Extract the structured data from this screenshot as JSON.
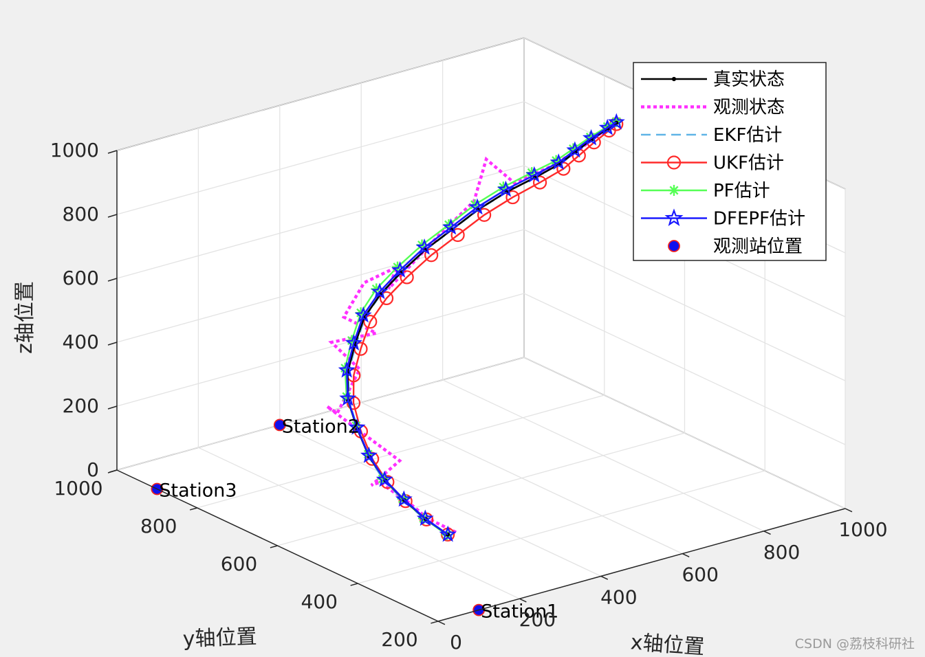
{
  "watermark": "CSDN @荔枝科研社",
  "chart_data": {
    "type": "line3d",
    "xlabel": "x轴位置",
    "ylabel": "y轴位置",
    "zlabel": "z轴位置",
    "xlim": [
      0,
      1000
    ],
    "ylim": [
      200,
      1000
    ],
    "zlim": [
      0,
      1000
    ],
    "x_ticks": [
      0,
      200,
      400,
      600,
      800,
      1000
    ],
    "y_ticks": [
      200,
      400,
      600,
      800,
      1000
    ],
    "z_ticks": [
      0,
      200,
      400,
      600,
      800,
      1000
    ],
    "x_tick_labels": [
      "0",
      "200",
      "400",
      "600",
      "800",
      "1000"
    ],
    "y_tick_labels": [
      "200",
      "400",
      "600",
      "800",
      "1000"
    ],
    "z_tick_labels": [
      "0",
      "200",
      "400",
      "600",
      "800",
      "1000"
    ],
    "grid": true,
    "legend_position": "top-right",
    "colors": {
      "true": "#000000",
      "observed": "#ff30ff",
      "ekf": "#5fb4e6",
      "ukf": "#ff2a2a",
      "pf": "#55ff55",
      "dfepf": "#1a1aff",
      "station_fill": "#1010ee",
      "station_edge": "#ee2020"
    },
    "series": [
      {
        "key": "true",
        "name": "真实状态",
        "x": [
          300,
          285,
          272,
          265,
          265,
          275,
          292,
          320,
          357,
          400,
          450,
          500,
          560,
          625,
          690,
          750,
          810,
          860,
          900,
          940,
          980,
          1000
        ],
        "y": [
          480,
          520,
          560,
          600,
          640,
          680,
          720,
          750,
          770,
          790,
          800,
          800,
          800,
          800,
          800,
          790,
          780,
          770,
          770,
          770,
          770,
          770
        ],
        "z": [
          0,
          30,
          70,
          110,
          160,
          220,
          280,
          340,
          400,
          460,
          510,
          560,
          610,
          650,
          690,
          730,
          760,
          790,
          815,
          840,
          860,
          870
        ]
      },
      {
        "key": "observed",
        "name": "观测状态",
        "x": [
          320,
          290,
          275,
          250,
          270,
          300,
          275,
          240,
          265,
          350,
          300,
          410,
          360,
          410,
          480,
          470,
          560,
          590,
          680,
          700,
          760,
          840,
          910,
          960,
          1000
        ],
        "y": [
          480,
          520,
          560,
          600,
          640,
          600,
          680,
          720,
          720,
          750,
          770,
          770,
          800,
          800,
          790,
          800,
          800,
          800,
          800,
          790,
          780,
          770,
          770,
          770,
          770
        ],
        "z": [
          0,
          30,
          70,
          110,
          70,
          160,
          220,
          280,
          250,
          340,
          430,
          420,
          470,
          560,
          590,
          520,
          610,
          640,
          720,
          850,
          760,
          790,
          820,
          850,
          870
        ]
      },
      {
        "key": "ekf",
        "name": "EKF估计",
        "x": [
          300,
          283,
          270,
          262,
          264,
          276,
          294,
          322,
          360,
          402,
          452,
          502,
          562,
          627,
          692,
          752,
          812,
          862,
          902,
          942,
          980,
          1000
        ],
        "y": [
          480,
          520,
          560,
          600,
          640,
          680,
          720,
          750,
          770,
          790,
          800,
          800,
          800,
          800,
          800,
          790,
          780,
          770,
          770,
          770,
          770,
          770
        ],
        "z": [
          0,
          30,
          70,
          110,
          160,
          220,
          280,
          340,
          400,
          460,
          510,
          560,
          610,
          650,
          690,
          730,
          760,
          790,
          815,
          840,
          860,
          870
        ]
      },
      {
        "key": "ukf",
        "name": "UKF估计",
        "x": [
          300,
          287,
          275,
          270,
          272,
          284,
          305,
          335,
          372,
          415,
          465,
          515,
          575,
          640,
          705,
          765,
          822,
          870,
          908,
          945,
          982,
          1000
        ],
        "y": [
          480,
          520,
          560,
          600,
          640,
          680,
          720,
          750,
          770,
          790,
          800,
          800,
          800,
          800,
          800,
          790,
          780,
          770,
          770,
          770,
          770,
          770
        ],
        "z": [
          0,
          28,
          66,
          104,
          152,
          210,
          268,
          326,
          384,
          442,
          492,
          540,
          588,
          628,
          668,
          708,
          740,
          772,
          800,
          828,
          852,
          866
        ]
      },
      {
        "key": "pf",
        "name": "PF估计",
        "x": [
          298,
          280,
          268,
          258,
          262,
          272,
          288,
          314,
          350,
          392,
          440,
          492,
          552,
          618,
          682,
          742,
          802,
          852,
          894,
          936,
          978,
          1000
        ],
        "y": [
          480,
          520,
          560,
          600,
          640,
          680,
          720,
          750,
          770,
          790,
          800,
          800,
          800,
          800,
          800,
          790,
          780,
          770,
          770,
          770,
          770,
          770
        ],
        "z": [
          0,
          34,
          76,
          118,
          170,
          232,
          294,
          356,
          418,
          478,
          530,
          580,
          628,
          668,
          708,
          748,
          778,
          804,
          826,
          848,
          866,
          874
        ]
      },
      {
        "key": "dfepf",
        "name": "DFEPF估计",
        "x": [
          300,
          284,
          271,
          263,
          264,
          274,
          291,
          318,
          355,
          398,
          448,
          498,
          558,
          623,
          688,
          748,
          808,
          858,
          898,
          938,
          978,
          1000
        ],
        "y": [
          480,
          520,
          560,
          600,
          640,
          680,
          720,
          750,
          770,
          790,
          800,
          800,
          800,
          800,
          800,
          790,
          780,
          770,
          770,
          770,
          770,
          770
        ],
        "z": [
          0,
          32,
          73,
          114,
          165,
          226,
          287,
          348,
          408,
          468,
          518,
          568,
          618,
          658,
          698,
          738,
          768,
          796,
          820,
          844,
          862,
          872
        ]
      }
    ],
    "stations": {
      "name": "观测站位置",
      "points": [
        {
          "label": "Station1",
          "x": 100,
          "y": 200,
          "z": 0
        },
        {
          "label": "Station2",
          "x": 400,
          "y": 1000,
          "z": 0
        },
        {
          "label": "Station3",
          "x": 0,
          "y": 900,
          "z": 0
        }
      ]
    }
  }
}
